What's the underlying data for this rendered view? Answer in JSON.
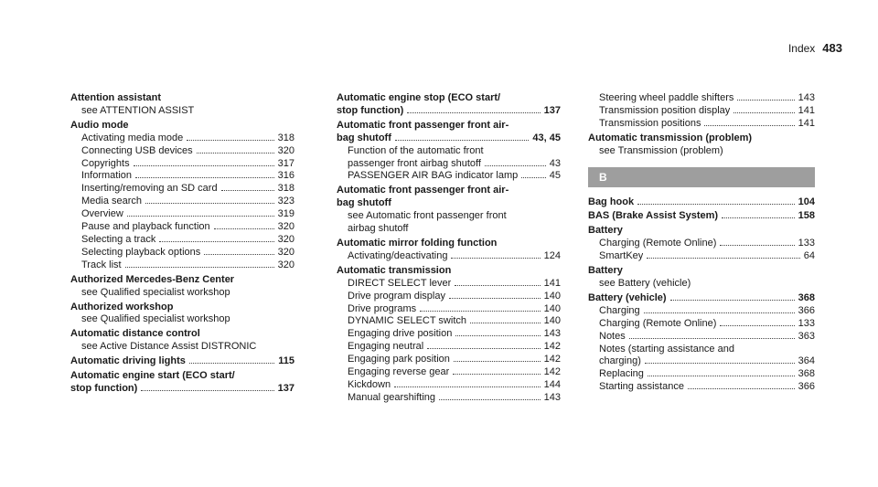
{
  "header": {
    "title": "Index",
    "page": "483"
  },
  "columns": [
    {
      "entries": [
        {
          "heading": "Attention assistant",
          "lines": [
            {
              "text": "see ATTENTION ASSIST"
            }
          ]
        },
        {
          "heading": "Audio mode",
          "lines": [
            {
              "text": "Activating media mode",
              "page": "318"
            },
            {
              "text": "Connecting USB devices",
              "page": "320"
            },
            {
              "text": "Copyrights",
              "page": "317"
            },
            {
              "text": "Information",
              "page": "316"
            },
            {
              "text": "Inserting/removing an SD card",
              "page": "318"
            },
            {
              "text": "Media search",
              "page": "323"
            },
            {
              "text": "Overview",
              "page": "319"
            },
            {
              "text": "Pause and playback function",
              "page": "320"
            },
            {
              "text": "Selecting a track",
              "page": "320"
            },
            {
              "text": "Selecting playback options",
              "page": "320"
            },
            {
              "text": "Track list",
              "page": "320"
            }
          ]
        },
        {
          "heading": "Authorized Mercedes-Benz Center",
          "lines": [
            {
              "text": "see Qualified specialist workshop"
            }
          ]
        },
        {
          "heading": "Authorized workshop",
          "lines": [
            {
              "text": "see Qualified specialist workshop"
            }
          ]
        },
        {
          "heading": "Automatic distance control",
          "lines": [
            {
              "text": "see Active Distance Assist DISTRONIC"
            }
          ]
        },
        {
          "heading": "Automatic driving lights",
          "headingPage": "115",
          "lines": []
        },
        {
          "heading": "Automatic engine start (ECO start/",
          "heading2": "stop function)",
          "headingPage": "137",
          "lines": []
        }
      ]
    },
    {
      "entries": [
        {
          "heading": "Automatic engine stop (ECO start/",
          "heading2": "stop function)",
          "headingPage": "137",
          "lines": []
        },
        {
          "heading": "Automatic front passenger front air-",
          "heading2": "bag shutoff",
          "headingPage": "43, 45",
          "lines": [
            {
              "text": "Function of the automatic front"
            },
            {
              "text": "passenger front airbag shutoff",
              "page": "43"
            },
            {
              "text": "PASSENGER AIR BAG indicator lamp",
              "page": "45"
            }
          ]
        },
        {
          "heading": "Automatic front passenger front air-",
          "heading2": "bag shutoff",
          "lines": [
            {
              "text": "see Automatic front passenger front"
            },
            {
              "text": "airbag shutoff"
            }
          ]
        },
        {
          "heading": "Automatic mirror folding function",
          "lines": [
            {
              "text": "Activating/deactivating",
              "page": "124"
            }
          ]
        },
        {
          "heading": "Automatic transmission",
          "lines": [
            {
              "text": "DIRECT SELECT lever",
              "page": "141"
            },
            {
              "text": "Drive program display",
              "page": "140"
            },
            {
              "text": "Drive programs",
              "page": "140"
            },
            {
              "text": "DYNAMIC SELECT switch",
              "page": "140"
            },
            {
              "text": "Engaging drive position",
              "page": "143"
            },
            {
              "text": "Engaging neutral",
              "page": "142"
            },
            {
              "text": "Engaging park position",
              "page": "142"
            },
            {
              "text": "Engaging reverse gear",
              "page": "142"
            },
            {
              "text": "Kickdown",
              "page": "144"
            },
            {
              "text": "Manual gearshifting",
              "page": "143"
            }
          ]
        }
      ]
    },
    {
      "entries": [
        {
          "heading": "",
          "lines": [
            {
              "text": "Steering wheel paddle shifters",
              "page": "143"
            },
            {
              "text": "Transmission position display",
              "page": "141"
            },
            {
              "text": "Transmission positions",
              "page": "141"
            }
          ]
        },
        {
          "heading": "Automatic transmission (problem)",
          "lines": [
            {
              "text": "see Transmission (problem)"
            }
          ]
        },
        {
          "section": "B"
        },
        {
          "heading": "Bag hook",
          "headingPage": "104",
          "lines": []
        },
        {
          "heading": "BAS (Brake Assist System)",
          "headingPage": "158",
          "lines": []
        },
        {
          "heading": "Battery",
          "lines": [
            {
              "text": "Charging (Remote Online)",
              "page": "133"
            },
            {
              "text": "SmartKey",
              "page": "64"
            }
          ]
        },
        {
          "heading": "Battery",
          "lines": [
            {
              "text": "see Battery (vehicle)"
            }
          ]
        },
        {
          "heading": "Battery (vehicle)",
          "headingPage": "368",
          "lines": [
            {
              "text": "Charging",
              "page": "366"
            },
            {
              "text": "Charging (Remote Online)",
              "page": "133"
            },
            {
              "text": "Notes",
              "page": "363"
            },
            {
              "text": "Notes (starting assistance and"
            },
            {
              "text": "charging)",
              "page": "364"
            },
            {
              "text": "Replacing",
              "page": "368"
            },
            {
              "text": "Starting assistance",
              "page": "366"
            }
          ]
        }
      ]
    }
  ]
}
